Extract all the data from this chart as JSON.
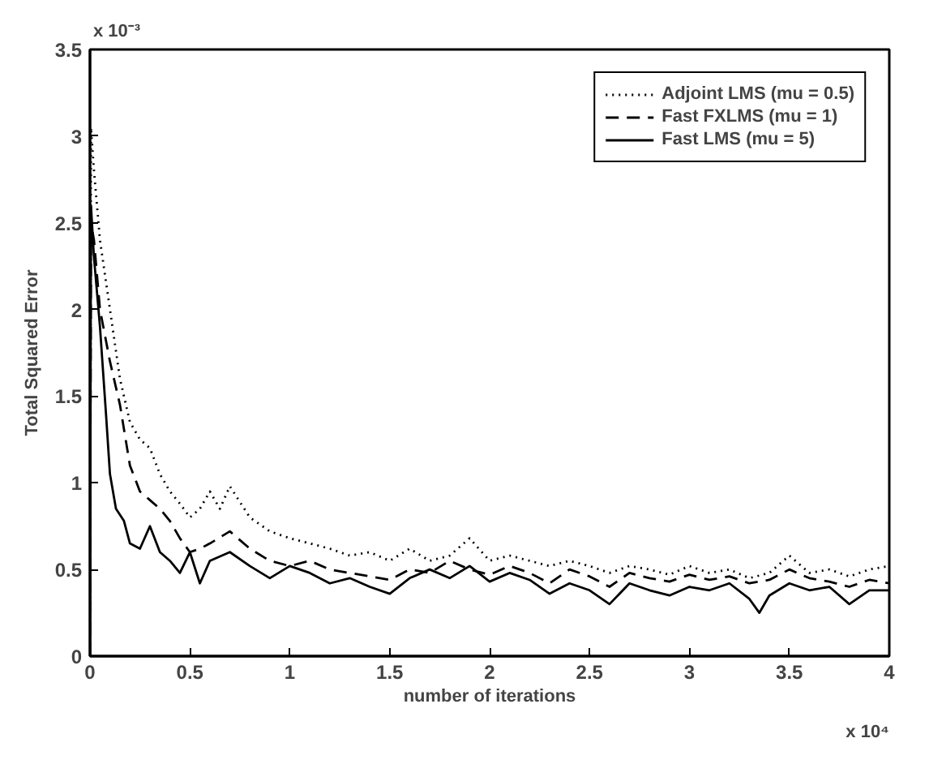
{
  "chart_data": {
    "type": "line",
    "xlabel": "number of iterations",
    "ylabel": "Total Squared Error",
    "annotations": [
      "x 10⁻³",
      "x 10⁴"
    ],
    "xlim": [
      0,
      4
    ],
    "xticks": [
      0,
      0.5,
      1,
      1.5,
      2,
      2.5,
      3,
      3.5,
      4
    ],
    "ylim": [
      0,
      3.5
    ],
    "yticks": [
      0,
      0.5,
      1,
      1.5,
      2,
      2.5,
      3,
      3.5
    ],
    "grid": false,
    "legend": "top right",
    "series": [
      {
        "name": "Adjoint LMS (mu = 0.5)",
        "color": "#000000",
        "line_style": "dotted",
        "x": [
          0,
          0.005,
          0.02,
          0.05,
          0.1,
          0.15,
          0.2,
          0.25,
          0.3,
          0.35,
          0.4,
          0.45,
          0.5,
          0.55,
          0.6,
          0.65,
          0.7,
          0.8,
          0.9,
          1.0,
          1.1,
          1.2,
          1.3,
          1.4,
          1.5,
          1.6,
          1.7,
          1.8,
          1.9,
          2.0,
          2.1,
          2.2,
          2.3,
          2.4,
          2.5,
          2.6,
          2.7,
          2.8,
          2.9,
          3.0,
          3.1,
          3.2,
          3.3,
          3.4,
          3.5,
          3.6,
          3.7,
          3.8,
          3.9,
          4.0
        ],
        "values": [
          0,
          3.05,
          2.8,
          2.4,
          2.0,
          1.6,
          1.35,
          1.25,
          1.2,
          1.05,
          0.95,
          0.88,
          0.8,
          0.85,
          0.95,
          0.85,
          0.98,
          0.8,
          0.72,
          0.68,
          0.65,
          0.62,
          0.58,
          0.6,
          0.55,
          0.62,
          0.55,
          0.58,
          0.68,
          0.55,
          0.58,
          0.55,
          0.52,
          0.55,
          0.52,
          0.48,
          0.52,
          0.5,
          0.47,
          0.52,
          0.48,
          0.5,
          0.45,
          0.48,
          0.58,
          0.48,
          0.5,
          0.46,
          0.5,
          0.52
        ]
      },
      {
        "name": "Fast FXLMS (mu = 1)",
        "color": "#000000",
        "line_style": "dashed",
        "x": [
          0,
          0.005,
          0.02,
          0.05,
          0.1,
          0.15,
          0.2,
          0.25,
          0.3,
          0.35,
          0.4,
          0.45,
          0.5,
          0.55,
          0.6,
          0.7,
          0.8,
          0.9,
          1.0,
          1.1,
          1.2,
          1.3,
          1.4,
          1.5,
          1.6,
          1.7,
          1.8,
          1.9,
          2.0,
          2.1,
          2.2,
          2.3,
          2.4,
          2.5,
          2.6,
          2.7,
          2.8,
          2.9,
          3.0,
          3.1,
          3.2,
          3.3,
          3.4,
          3.5,
          3.6,
          3.7,
          3.8,
          3.9,
          4.0
        ],
        "values": [
          0,
          2.5,
          2.4,
          2.0,
          1.7,
          1.45,
          1.1,
          0.95,
          0.9,
          0.85,
          0.78,
          0.68,
          0.6,
          0.62,
          0.65,
          0.72,
          0.62,
          0.55,
          0.52,
          0.55,
          0.5,
          0.48,
          0.46,
          0.44,
          0.5,
          0.48,
          0.55,
          0.5,
          0.47,
          0.52,
          0.48,
          0.42,
          0.5,
          0.46,
          0.4,
          0.48,
          0.45,
          0.43,
          0.47,
          0.44,
          0.46,
          0.42,
          0.44,
          0.5,
          0.45,
          0.43,
          0.4,
          0.44,
          0.42
        ]
      },
      {
        "name": "Fast LMS (mu = 5)",
        "color": "#000000",
        "line_style": "solid",
        "x": [
          0,
          0.005,
          0.02,
          0.05,
          0.08,
          0.1,
          0.13,
          0.17,
          0.2,
          0.25,
          0.3,
          0.35,
          0.4,
          0.45,
          0.5,
          0.55,
          0.6,
          0.7,
          0.8,
          0.9,
          1.0,
          1.1,
          1.2,
          1.3,
          1.4,
          1.5,
          1.6,
          1.7,
          1.8,
          1.9,
          2.0,
          2.1,
          2.2,
          2.3,
          2.4,
          2.5,
          2.6,
          2.7,
          2.8,
          2.9,
          3.0,
          3.1,
          3.2,
          3.3,
          3.35,
          3.4,
          3.5,
          3.6,
          3.7,
          3.8,
          3.9,
          4.0
        ],
        "values": [
          0,
          2.6,
          2.3,
          1.9,
          1.4,
          1.05,
          0.85,
          0.78,
          0.65,
          0.62,
          0.75,
          0.6,
          0.55,
          0.48,
          0.6,
          0.42,
          0.55,
          0.6,
          0.52,
          0.45,
          0.52,
          0.48,
          0.42,
          0.45,
          0.4,
          0.36,
          0.45,
          0.5,
          0.45,
          0.52,
          0.43,
          0.48,
          0.44,
          0.36,
          0.42,
          0.38,
          0.3,
          0.42,
          0.38,
          0.35,
          0.4,
          0.38,
          0.42,
          0.33,
          0.25,
          0.35,
          0.42,
          0.38,
          0.4,
          0.3,
          0.38,
          0.38
        ]
      }
    ]
  }
}
